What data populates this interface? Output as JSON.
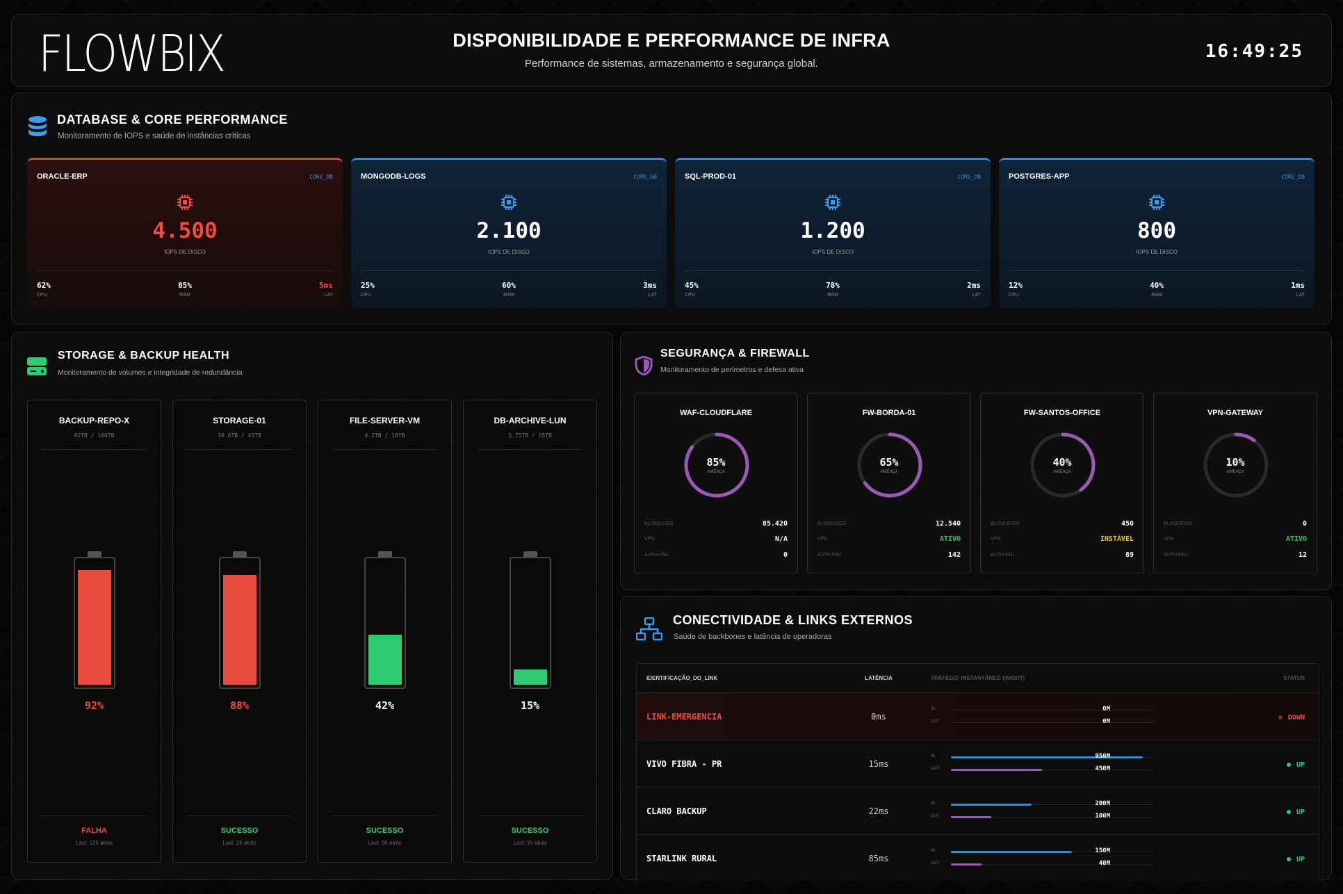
{
  "header": {
    "logo": "FLOWBIX",
    "title": "DISPONIBILIDADE E PERFORMANCE DE INFRA",
    "subtitle": "Performance de sistemas, armazenamento e segurança global.",
    "clock": "16:49:25"
  },
  "database": {
    "title": "DATABASE & CORE PERFORMANCE",
    "subtitle": "Monitoramento de IOPS e saúde de instâncias críticas",
    "value_label": "IOPS DE DISCO",
    "metric_labels": [
      "CPU",
      "RAM",
      "LAT"
    ],
    "cards": [
      {
        "name": "ORACLE-ERP",
        "tag": "CORE_DB",
        "value": "4.500",
        "cpu": "62%",
        "ram": "85%",
        "lat": "5ms",
        "alert": true
      },
      {
        "name": "MONGODB-LOGS",
        "tag": "CORE_DB",
        "value": "2.100",
        "cpu": "25%",
        "ram": "60%",
        "lat": "3ms",
        "alert": false
      },
      {
        "name": "SQL-PROD-01",
        "tag": "CORE_DB",
        "value": "1.200",
        "cpu": "45%",
        "ram": "78%",
        "lat": "2ms",
        "alert": false
      },
      {
        "name": "POSTGRES-APP",
        "tag": "CORE_DB",
        "value": "800",
        "cpu": "12%",
        "ram": "40%",
        "lat": "1ms",
        "alert": false
      }
    ],
    "colors": {
      "normal_top": "#3a8ad8",
      "alert_top": "#e0463a"
    }
  },
  "storage": {
    "title": "STORAGE & BACKUP HEALTH",
    "subtitle": "Monitoramento de volumes e integridade de redundância",
    "items": [
      {
        "name": "BACKUP-REPO-X",
        "capacity": "92TB / 100TB",
        "percent": 92,
        "percent_label": "92%",
        "status": "FALHA",
        "last": "Last: 12h atrás",
        "color": "#e74c3c"
      },
      {
        "name": "STORAGE-01",
        "capacity": "39.6TB / 45TB",
        "percent": 88,
        "percent_label": "88%",
        "status": "SUCESSO",
        "last": "Last: 2h atrás",
        "color": "#e74c3c"
      },
      {
        "name": "FILE-SERVER-VM",
        "capacity": "4.2TB / 10TB",
        "percent": 42,
        "percent_label": "42%",
        "status": "SUCESSO",
        "last": "Last: 6h atrás",
        "color": "#2ecc71"
      },
      {
        "name": "DB-ARCHIVE-LUN",
        "capacity": "3.75TB / 25TB",
        "percent": 15,
        "percent_label": "15%",
        "status": "SUCESSO",
        "last": "Last: 1h atrás",
        "color": "#2ecc71"
      }
    ]
  },
  "security": {
    "title": "SEGURANÇA & FIREWALL",
    "subtitle": "Monitoramento de perímetros e defesa ativa",
    "ring_label": "AMEAÇA",
    "row_labels": [
      "BLOQUEIOS",
      "VPN",
      "AUTH FAIL"
    ],
    "firewalls": [
      {
        "name": "WAF-CLOUDFLARE",
        "threat": 85,
        "threat_label": "85%",
        "bloqueios": "85.420",
        "vpn": "N/A",
        "vpn_state": "neutral",
        "auth_fail": "0"
      },
      {
        "name": "FW-BORDA-01",
        "threat": 65,
        "threat_label": "65%",
        "bloqueios": "12.540",
        "vpn": "ATIVO",
        "vpn_state": "ok",
        "auth_fail": "142"
      },
      {
        "name": "FW-SANTOS-OFFICE",
        "threat": 40,
        "threat_label": "40%",
        "bloqueios": "450",
        "vpn": "INSTÁVEL",
        "vpn_state": "warn",
        "auth_fail": "89"
      },
      {
        "name": "VPN-GATEWAY",
        "threat": 10,
        "threat_label": "10%",
        "bloqueios": "0",
        "vpn": "ATIVO",
        "vpn_state": "ok",
        "auth_fail": "12"
      }
    ],
    "ring_color": "#9b59b6"
  },
  "connectivity": {
    "title": "CONECTIVIDADE & LINKS EXTERNOS",
    "subtitle": "Saúde de backbones e latência de operadoras",
    "headers": {
      "link": "IDENTIFICAÇÃO_DO_LINK",
      "latency": "LATÊNCIA",
      "traffic": "TRÁFEGO_INSTANTÂNEO (IN/OUT)",
      "status": "STATUS"
    },
    "in_label": "IN",
    "out_label": "OUT",
    "links": [
      {
        "name": "LINK-EMERGENCIA",
        "latency": "0ms",
        "in": "0M",
        "out": "0M",
        "in_ratio": 0,
        "out_ratio": 0,
        "status": "DOWN",
        "alert": true
      },
      {
        "name": "VIVO FIBRA - PR",
        "latency": "15ms",
        "in": "950M",
        "out": "450M",
        "in_ratio": 0.95,
        "out_ratio": 0.45,
        "status": "UP",
        "alert": false
      },
      {
        "name": "CLARO BACKUP",
        "latency": "22ms",
        "in": "200M",
        "out": "100M",
        "in_ratio": 0.4,
        "out_ratio": 0.2,
        "status": "UP",
        "alert": false
      },
      {
        "name": "STARLINK RURAL",
        "latency": "85ms",
        "in": "150M",
        "out": "40M",
        "in_ratio": 0.6,
        "out_ratio": 0.15,
        "status": "UP",
        "alert": false
      }
    ],
    "colors": {
      "in": "#3a8ad8",
      "out": "#9b59b6",
      "up": "#2ecc71",
      "down": "#e74c3c"
    }
  }
}
